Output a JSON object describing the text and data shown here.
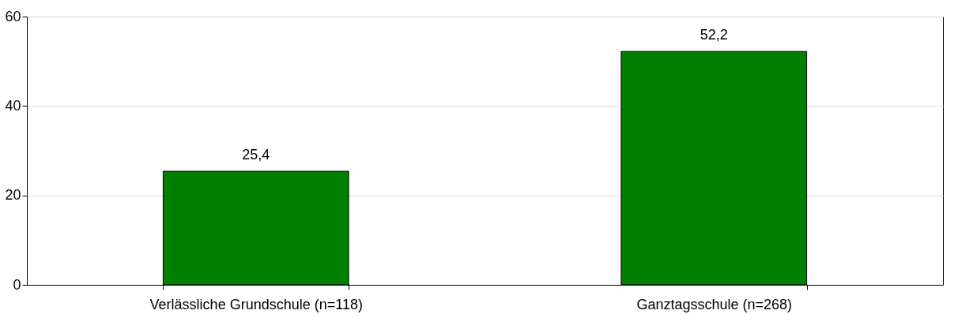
{
  "chart_data": {
    "type": "bar",
    "categories": [
      "Verlässliche Grundschule (n=118)",
      "Ganztagsschule (n=268)"
    ],
    "values": [
      25.4,
      52.2
    ],
    "color": "#008000",
    "value_labels": [
      "25,4",
      "52,2"
    ],
    "ylim": [
      0,
      60
    ],
    "yticks": [
      0,
      20,
      40,
      60
    ],
    "grid": "y"
  }
}
